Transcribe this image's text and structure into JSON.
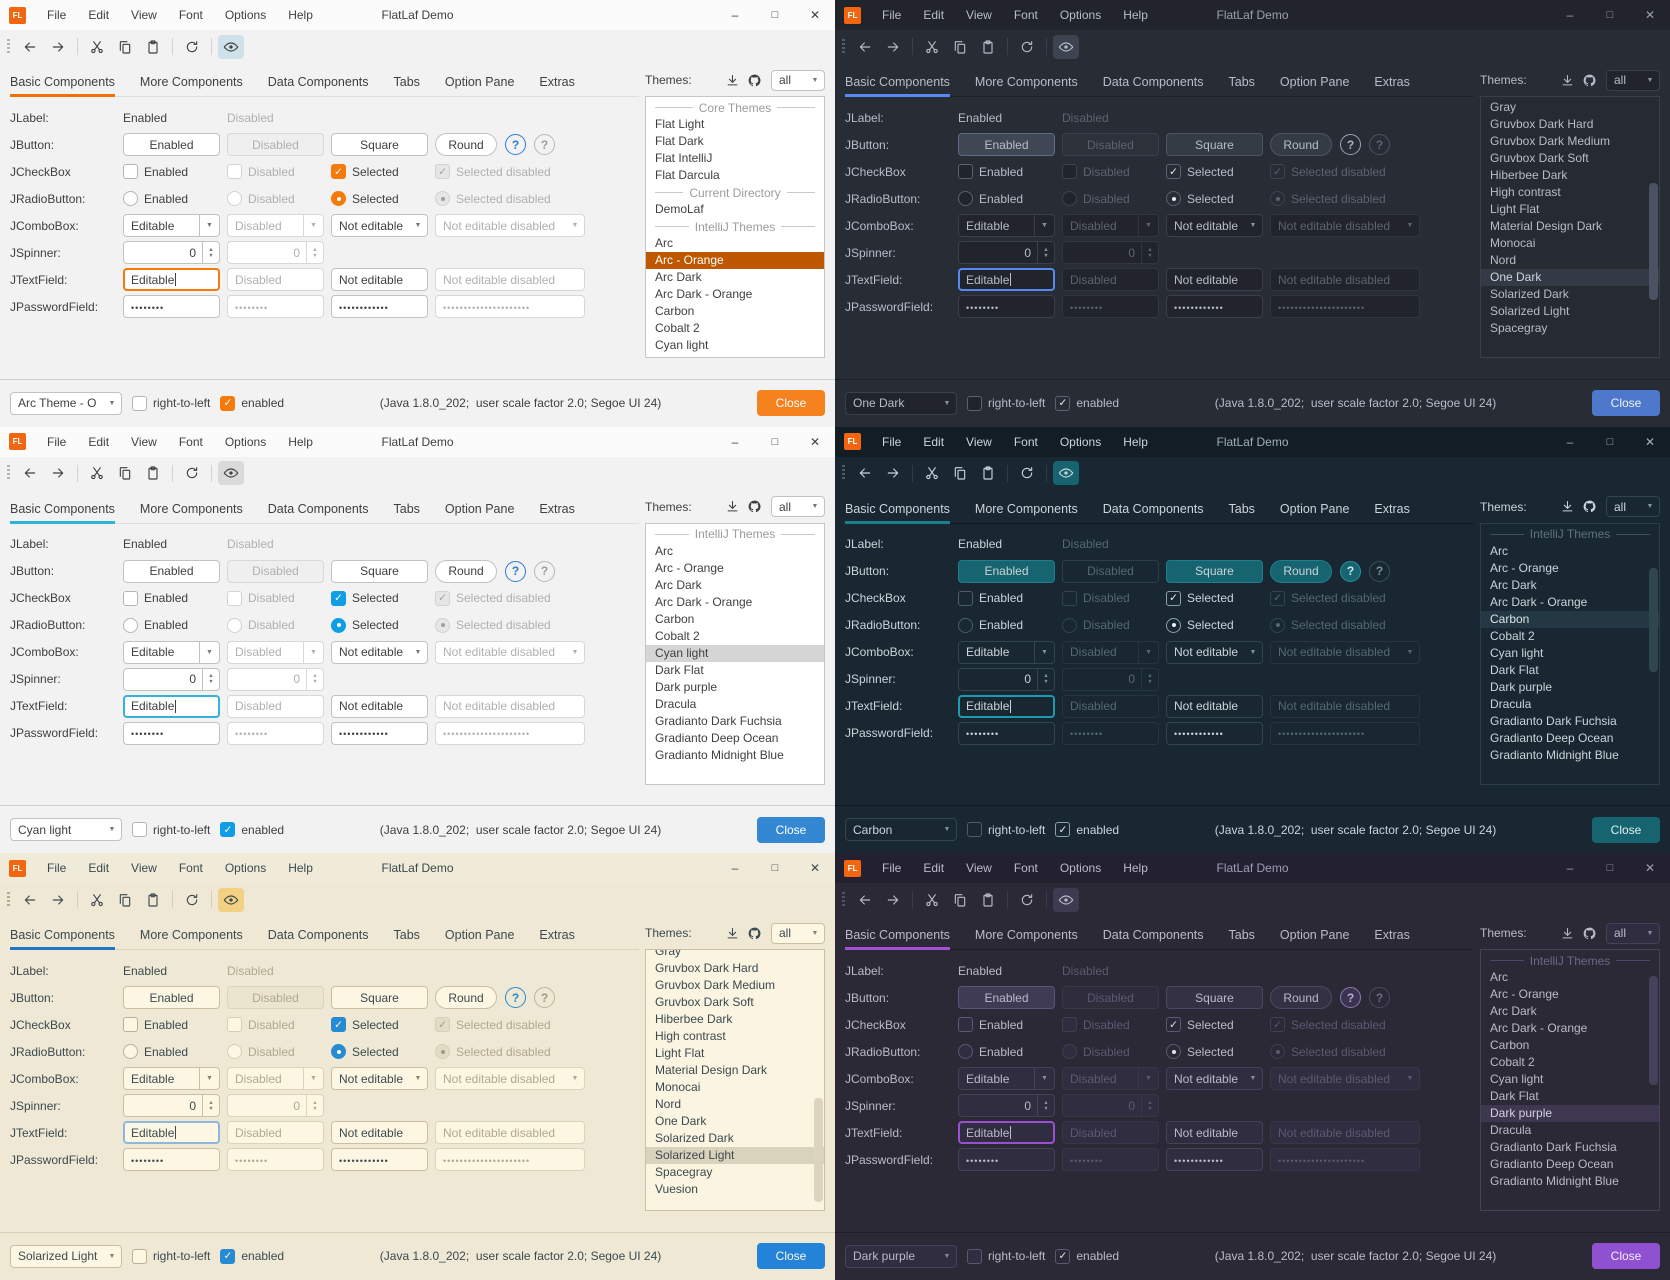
{
  "shared": {
    "window_title": "FlatLaf Demo",
    "app_icon_text": "FL",
    "menu": [
      "File",
      "Edit",
      "View",
      "Font",
      "Options",
      "Help"
    ],
    "window_controls": {
      "minimize": "–",
      "maximize": "□",
      "close": "✕"
    },
    "toolbar_icons": [
      "back-icon",
      "forward-icon",
      "cut-icon",
      "copy-icon",
      "paste-icon",
      "refresh-icon",
      "eye-icon"
    ],
    "tabs": [
      "Basic Components",
      "More Components",
      "Data Components",
      "Tabs",
      "Option Pane",
      "Extras"
    ],
    "selected_tab": "Basic Components",
    "themes_label": "Themes:",
    "themes_icons": [
      "download-icon",
      "github-icon"
    ],
    "themes_filter_value": "all",
    "rows": {
      "jlabel": {
        "label": "JLabel:",
        "enabled": "Enabled",
        "disabled": "Disabled"
      },
      "jbutton": {
        "label": "JButton:",
        "enabled": "Enabled",
        "disabled": "Disabled",
        "square": "Square",
        "round": "Round",
        "help": "?"
      },
      "jcheckbox": {
        "label": "JCheckBox",
        "enabled": "Enabled",
        "disabled": "Disabled",
        "selected": "Selected",
        "selected_disabled": "Selected disabled"
      },
      "jradiobutton": {
        "label": "JRadioButton:",
        "enabled": "Enabled",
        "disabled": "Disabled",
        "selected": "Selected",
        "selected_disabled": "Selected disabled"
      },
      "jcombobox": {
        "label": "JComboBox:",
        "editable": "Editable",
        "disabled": "Disabled",
        "not_editable": "Not editable",
        "not_editable_disabled": "Not editable disabled"
      },
      "jspinner": {
        "label": "JSpinner:",
        "value": "0",
        "value_disabled": "0"
      },
      "jtextfield": {
        "label": "JTextField:",
        "editable": "Editable",
        "disabled": "Disabled",
        "not_editable": "Not editable",
        "not_editable_disabled": "Not editable disabled"
      },
      "jpasswordfield": {
        "label": "JPasswordField:",
        "dots1": "••••••••",
        "dots2": "••••••••",
        "dots3": "••••••••••••",
        "dots4": "•••••••••••••••••••••"
      }
    },
    "statusbar": {
      "rtl": "right-to-left",
      "enabled": "enabled",
      "info": "(Java 1.8.0_202;  user scale factor 2.0; Segoe UI 24)",
      "close": "Close"
    }
  },
  "panels": [
    {
      "status_combo_value": "Arc Theme - O",
      "list": [
        {
          "type": "separator",
          "label": "Core Themes"
        },
        {
          "type": "item",
          "label": "Flat Light"
        },
        {
          "type": "item",
          "label": "Flat Dark"
        },
        {
          "type": "item",
          "label": "Flat IntelliJ"
        },
        {
          "type": "item",
          "label": "Flat Darcula"
        },
        {
          "type": "separator",
          "label": "Current Directory"
        },
        {
          "type": "item",
          "label": "DemoLaf"
        },
        {
          "type": "separator",
          "label": "IntelliJ Themes"
        },
        {
          "type": "item",
          "label": "Arc"
        },
        {
          "type": "item",
          "label": "Arc - Orange",
          "selected": true
        },
        {
          "type": "item",
          "label": "Arc Dark"
        },
        {
          "type": "item",
          "label": "Arc Dark - Orange"
        },
        {
          "type": "item",
          "label": "Carbon"
        },
        {
          "type": "item",
          "label": "Cobalt 2"
        },
        {
          "type": "item",
          "label": "Cyan light"
        }
      ],
      "scrollbar": null,
      "colors": {
        "bg": "#f2f2f2",
        "titlebar-bg": "#fbfbfb",
        "title-text": "#3f3f3f",
        "text": "#3f3f3f",
        "text-disabled": "#b0b0b0",
        "grip": "#b5b5b5",
        "tb-sep": "#d4d4d4",
        "toggle-bg": "#cfe1e9",
        "tab-line": "#dedede",
        "accent": "#ee7203",
        "btn-bg": "#ffffff",
        "btn-border": "#c2c2c2",
        "btn-primary-bg": "#ffffff",
        "btn-primary-border": "#c2c2c2",
        "btn-disabled-bg": "#efefef",
        "btn-disabled-border": "#d8d8d8",
        "help1-border": "#2e7bd4",
        "help1-text": "#2e7bd4",
        "help2-border": "#b8b8b8",
        "help2-text": "#9d9d9d",
        "cb-border": "#b5b5b5",
        "cb-border-dis": "#d2d2d2",
        "check-bg": "#f57a0a",
        "check-border-on": "#f57a0a",
        "check-mark": "#ffffff",
        "check-mark-dis": "#9f9f9f",
        "check-dis-bg": "#e6e6e6",
        "field-bg": "#ffffff",
        "fld-border": "#c2c2c2",
        "fld-border-dis": "#d8d8d8",
        "focus-border": "#f57a0a",
        "arrow": "#767676",
        "list-bg": "#ffffff",
        "list-border": "#c6c6c6",
        "list-sel-bg": "#bf5700",
        "list-sel-text": "#ffffff",
        "sep-text": "#9b9b9b",
        "sep-line": "#c9c9c9",
        "status-sep": "#cfcfcf",
        "close-bg": "#f5821f",
        "close-text": "#ffffff",
        "thumb": "transparent"
      }
    },
    {
      "status_combo_value": "One Dark",
      "list": [
        {
          "type": "item",
          "label": "Gray"
        },
        {
          "type": "item",
          "label": "Gruvbox Dark Hard"
        },
        {
          "type": "item",
          "label": "Gruvbox Dark Medium"
        },
        {
          "type": "item",
          "label": "Gruvbox Dark Soft"
        },
        {
          "type": "item",
          "label": "Hiberbee Dark"
        },
        {
          "type": "item",
          "label": "High contrast"
        },
        {
          "type": "item",
          "label": "Light Flat"
        },
        {
          "type": "item",
          "label": "Material Design Dark"
        },
        {
          "type": "item",
          "label": "Monocai"
        },
        {
          "type": "item",
          "label": "Nord"
        },
        {
          "type": "item",
          "label": "One Dark",
          "selected": true
        },
        {
          "type": "item",
          "label": "Solarized Dark"
        },
        {
          "type": "item",
          "label": "Solarized Light"
        },
        {
          "type": "item",
          "label": "Spacegray"
        }
      ],
      "scrollbar": {
        "top_pct": 33,
        "height_pct": 45
      },
      "colors": {
        "bg": "#282c34",
        "titlebar-bg": "#21252b",
        "title-text": "#9aa1ad",
        "text": "#b7bdc8",
        "text-disabled": "#5c6370",
        "grip": "#565d68",
        "tb-sep": "#3a3f4a",
        "toggle-bg": "#3d434f",
        "tab-line": "#1e2126",
        "accent": "#568af2",
        "btn-bg": "#353b45",
        "btn-border": "#4d5565",
        "btn-primary-bg": "#404754",
        "btn-primary-border": "#5e6a84",
        "btn-disabled-bg": "#2c313a",
        "btn-disabled-border": "#3a404b",
        "help1-border": "#9aa3b2",
        "help1-text": "#aeb6c2",
        "help2-border": "#4d5461",
        "help2-text": "#5c6370",
        "cb-border": "#5a626f",
        "cb-border-dis": "#3d434d",
        "check-bg": "transparent",
        "check-border-on": "#5a626f",
        "check-mark": "#e6e9ee",
        "check-mark-dis": "#5c6370",
        "field-bg": "#21252b",
        "fld-border": "#3a404b",
        "fld-border-dis": "#31363f",
        "focus-border": "#568af2",
        "arrow": "#8a93a2",
        "list-bg": "#262a31",
        "list-border": "#3a404b",
        "list-sel-bg": "#333a45",
        "list-sel-text": "#cfd5de",
        "sep-text": "#6a7280",
        "sep-line": "#4a5160",
        "status-sep": "#1e2126",
        "close-bg": "#4d78cc",
        "close-text": "#eef2f9",
        "thumb": "#4b5363"
      }
    },
    {
      "status_combo_value": "Cyan light",
      "list": [
        {
          "type": "separator",
          "label": "IntelliJ Themes"
        },
        {
          "type": "item",
          "label": "Arc"
        },
        {
          "type": "item",
          "label": "Arc - Orange"
        },
        {
          "type": "item",
          "label": "Arc Dark"
        },
        {
          "type": "item",
          "label": "Arc Dark - Orange"
        },
        {
          "type": "item",
          "label": "Carbon"
        },
        {
          "type": "item",
          "label": "Cobalt 2"
        },
        {
          "type": "item",
          "label": "Cyan light",
          "selected": true
        },
        {
          "type": "item",
          "label": "Dark Flat"
        },
        {
          "type": "item",
          "label": "Dark purple"
        },
        {
          "type": "item",
          "label": "Dracula"
        },
        {
          "type": "item",
          "label": "Gradianto Dark Fuchsia"
        },
        {
          "type": "item",
          "label": "Gradianto Deep Ocean"
        },
        {
          "type": "item",
          "label": "Gradianto Midnight Blue"
        }
      ],
      "scrollbar": null,
      "colors": {
        "bg": "#f2f2f2",
        "titlebar-bg": "#fbfbfb",
        "title-text": "#3f3f3f",
        "text": "#3f3f3f",
        "text-disabled": "#b0b0b0",
        "grip": "#b5b5b5",
        "tb-sep": "#d4d4d4",
        "toggle-bg": "#dadada",
        "tab-line": "#dedede",
        "accent": "#2cb5d6",
        "btn-bg": "#ffffff",
        "btn-border": "#c2c2c2",
        "btn-primary-bg": "#ffffff",
        "btn-primary-border": "#c2c2c2",
        "btn-disabled-bg": "#efefef",
        "btn-disabled-border": "#d8d8d8",
        "help1-border": "#2e7bd4",
        "help1-text": "#2e7bd4",
        "help2-border": "#b8b8b8",
        "help2-text": "#9d9d9d",
        "cb-border": "#b5b5b5",
        "cb-border-dis": "#d2d2d2",
        "check-bg": "#0f9ee5",
        "check-border-on": "#0f9ee5",
        "check-mark": "#ffffff",
        "check-mark-dis": "#9f9f9f",
        "check-dis-bg": "#e6e6e6",
        "field-bg": "#ffffff",
        "fld-border": "#c2c2c2",
        "fld-border-dis": "#d8d8d8",
        "focus-border": "#35b2d9",
        "arrow": "#767676",
        "list-bg": "#ffffff",
        "list-border": "#c6c6c6",
        "list-sel-bg": "#d5d5d5",
        "list-sel-text": "#3f3f3f",
        "sep-text": "#9b9b9b",
        "sep-line": "#c9c9c9",
        "status-sep": "#cfcfcf",
        "close-bg": "#3487d3",
        "close-text": "#ffffff",
        "thumb": "transparent"
      }
    },
    {
      "status_combo_value": "Carbon",
      "list": [
        {
          "type": "separator",
          "label": "IntelliJ Themes"
        },
        {
          "type": "item",
          "label": "Arc"
        },
        {
          "type": "item",
          "label": "Arc - Orange"
        },
        {
          "type": "item",
          "label": "Arc Dark"
        },
        {
          "type": "item",
          "label": "Arc Dark - Orange"
        },
        {
          "type": "item",
          "label": "Carbon",
          "selected": true
        },
        {
          "type": "item",
          "label": "Cobalt 2"
        },
        {
          "type": "item",
          "label": "Cyan light"
        },
        {
          "type": "item",
          "label": "Dark Flat"
        },
        {
          "type": "item",
          "label": "Dark purple"
        },
        {
          "type": "item",
          "label": "Dracula"
        },
        {
          "type": "item",
          "label": "Gradianto Dark Fuchsia"
        },
        {
          "type": "item",
          "label": "Gradianto Deep Ocean"
        },
        {
          "type": "item",
          "label": "Gradianto Midnight Blue"
        }
      ],
      "scrollbar": {
        "top_pct": 17,
        "height_pct": 40
      },
      "colors": {
        "bg": "#182731",
        "titlebar-bg": "#121d25",
        "title-text": "#9fb0b8",
        "text": "#ccd4d9",
        "text-disabled": "#56686f",
        "grip": "#4a5c66",
        "tb-sep": "#2b3d47",
        "toggle-bg": "#16646f",
        "tab-line": "#101920",
        "accent": "#1d7f8c",
        "btn-bg": "#16646f",
        "btn-border": "#1d7f8c",
        "btn-primary-bg": "#16646f",
        "btn-primary-border": "#1d7f8c",
        "btn-disabled-bg": "transparent",
        "btn-disabled-border": "#2c404b",
        "help1-border": "#27919f",
        "help1-text": "#d5e4e6",
        "help1-bg": "#16646f",
        "help2-border": "#3b515c",
        "help2-text": "#7f929c",
        "cb-border": "#4b5e69",
        "cb-border-dis": "#31454f",
        "check-bg": "transparent",
        "check-border-on": "#8aa0aa",
        "check-mark": "#eaf2f4",
        "check-mark-dis": "#56686f",
        "field-bg": "#182731",
        "fld-border": "#31454f",
        "fld-border-dis": "#25363f",
        "focus-border": "#1e9ab0",
        "arrow": "#7f929c",
        "list-bg": "#182731",
        "list-border": "#2b3d47",
        "list-sel-bg": "#243843",
        "list-sel-text": "#dbe3e6",
        "sep-text": "#5e727d",
        "sep-line": "#3c515c",
        "status-sep": "#101920",
        "close-bg": "#16646f",
        "close-text": "#e4eff1",
        "thumb": "#31454f"
      }
    },
    {
      "status_combo_value": "Solarized Light",
      "list": [
        {
          "type": "item",
          "label": "Gray",
          "clipped": true
        },
        {
          "type": "item",
          "label": "Gruvbox Dark Hard"
        },
        {
          "type": "item",
          "label": "Gruvbox Dark Medium"
        },
        {
          "type": "item",
          "label": "Gruvbox Dark Soft"
        },
        {
          "type": "item",
          "label": "Hiberbee Dark"
        },
        {
          "type": "item",
          "label": "High contrast"
        },
        {
          "type": "item",
          "label": "Light Flat"
        },
        {
          "type": "item",
          "label": "Material Design Dark"
        },
        {
          "type": "item",
          "label": "Monocai"
        },
        {
          "type": "item",
          "label": "Nord"
        },
        {
          "type": "item",
          "label": "One Dark"
        },
        {
          "type": "item",
          "label": "Solarized Dark"
        },
        {
          "type": "item",
          "label": "Solarized Light",
          "selected": true
        },
        {
          "type": "item",
          "label": "Spacegray"
        },
        {
          "type": "item",
          "label": "Vuesion"
        }
      ],
      "scrollbar": {
        "top_pct": 57,
        "height_pct": 40
      },
      "colors": {
        "bg": "#eee8d5",
        "titlebar-bg": "#f0ead8",
        "title-text": "#3b4a50",
        "text": "#3b4a50",
        "text-disabled": "#b0a98e",
        "grip": "#b0a98e",
        "tb-sep": "#d6ceb6",
        "toggle-bg": "#f2d084",
        "tab-line": "#dbd3ba",
        "accent": "#2075c7",
        "btn-bg": "#fdf6e3",
        "btn-border": "#c9c0a4",
        "btn-primary-bg": "#fdf6e3",
        "btn-primary-border": "#c9c0a4",
        "btn-disabled-bg": "#ebe4cf",
        "btn-disabled-border": "#dcd4ba",
        "help1-border": "#268bd2",
        "help1-text": "#268bd2",
        "help2-border": "#bcb49c",
        "help2-text": "#a29b82",
        "cb-border": "#b9b198",
        "cb-border-dis": "#d6ceb4",
        "check-bg": "#268bd2",
        "check-border-on": "#268bd2",
        "check-mark": "#fdf6e3",
        "check-mark-dis": "#a29b82",
        "check-dis-bg": "#e2dbc5",
        "field-bg": "#fdf6e3",
        "fld-border": "#c9c0a4",
        "fld-border-dis": "#dcd4ba",
        "focus-border": "#8db8dc",
        "arrow": "#8a8468",
        "list-bg": "#fbf4e1",
        "list-border": "#c9c0a4",
        "list-sel-bg": "#d9d2bc",
        "list-sel-text": "#3b4a50",
        "sep-text": "#a29b82",
        "sep-line": "#c9c0a4",
        "status-sep": "#d6ceb6",
        "close-bg": "#2383d8",
        "close-text": "#fdf6e3",
        "thumb": "#dcd4bd"
      }
    },
    {
      "status_combo_value": "Dark purple",
      "list": [
        {
          "type": "separator",
          "label": "IntelliJ Themes"
        },
        {
          "type": "item",
          "label": "Arc"
        },
        {
          "type": "item",
          "label": "Arc - Orange"
        },
        {
          "type": "item",
          "label": "Arc Dark"
        },
        {
          "type": "item",
          "label": "Arc Dark - Orange"
        },
        {
          "type": "item",
          "label": "Carbon"
        },
        {
          "type": "item",
          "label": "Cobalt 2"
        },
        {
          "type": "item",
          "label": "Cyan light"
        },
        {
          "type": "item",
          "label": "Dark Flat"
        },
        {
          "type": "item",
          "label": "Dark purple",
          "selected": true
        },
        {
          "type": "item",
          "label": "Dracula"
        },
        {
          "type": "item",
          "label": "Gradianto Dark Fuchsia"
        },
        {
          "type": "item",
          "label": "Gradianto Deep Ocean"
        },
        {
          "type": "item",
          "label": "Gradianto Midnight Blue"
        }
      ],
      "scrollbar": {
        "top_pct": 10,
        "height_pct": 42
      },
      "colors": {
        "bg": "#2b2935",
        "titlebar-bg": "#232130",
        "title-text": "#a29bb5",
        "text": "#bdb9ca",
        "text-disabled": "#5e5873",
        "grip": "#554f68",
        "tb-sep": "#3e3a4d",
        "toggle-bg": "#3e3a50",
        "tab-line": "#201e29",
        "accent": "#a64dd6",
        "btn-bg": "#353144",
        "btn-border": "#4e4865",
        "btn-primary-bg": "#403b54",
        "btn-primary-border": "#5d5578",
        "btn-disabled-bg": "#2f2c3c",
        "btn-disabled-border": "#3b3649",
        "help1-border": "#8b7ab8",
        "help1-text": "#b6aad8",
        "help1-bg": "#3a3450",
        "help2-border": "#4e4865",
        "help2-text": "#6f6889",
        "cb-border": "#5d5675",
        "cb-border-dis": "#423d55",
        "check-bg": "transparent",
        "check-border-on": "#5d5675",
        "check-mark": "#e4e1f0",
        "check-mark-dis": "#5e5873",
        "field-bg": "#312d40",
        "fld-border": "#46415a",
        "fld-border-dis": "#3a3549",
        "focus-border": "#9b4fd4",
        "arrow": "#8d86a3",
        "list-bg": "#2b2935",
        "list-border": "#46415a",
        "list-sel-bg": "#3d3850",
        "list-sel-text": "#d5d1e3",
        "sep-text": "#6e6789",
        "sep-line": "#4e4865",
        "status-sep": "#201e29",
        "close-bg": "#9050d2",
        "close-text": "#f3eefb",
        "thumb": "#46415a"
      }
    }
  ]
}
